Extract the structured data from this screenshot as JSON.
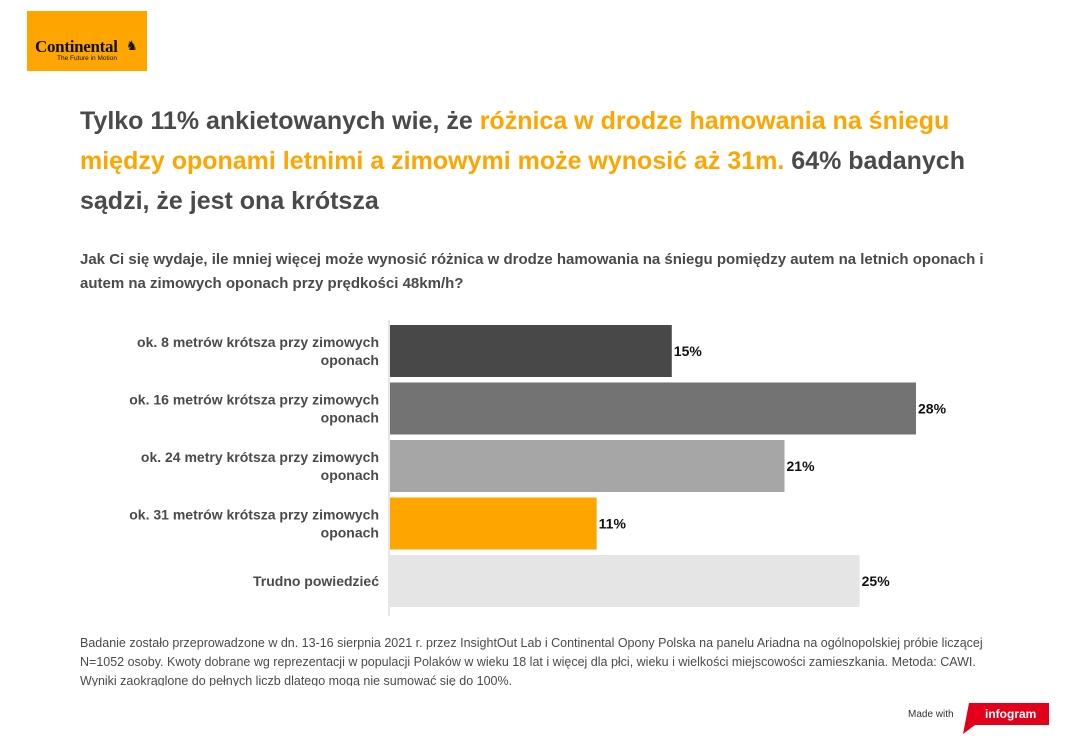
{
  "logo": {
    "word": "Continental",
    "tagline": "The Future in Motion",
    "bg_color": "#ffa500",
    "icon": "horse-icon"
  },
  "headline": {
    "part1": "Tylko 11% ankietowanych wie, że ",
    "highlight": "różnica w drodze hamowania na śniegu między oponami letnimi a zimowymi może wynosić aż 31m.",
    "part2": " 64% badanych sądzi, że jest ona krótsza",
    "highlight_color": "#ffa500"
  },
  "question": "Jak Ci się wydaje, ile mniej więcej może wynosić różnica w drodze hamowania na śniegu pomiędzy autem na letnich oponach i autem na zimowych oponach przy prędkości 48km/h?",
  "chart_data": {
    "type": "bar",
    "orientation": "horizontal",
    "categories": [
      [
        "ok. 8 metrów krótsza przy zimowych",
        "oponach"
      ],
      [
        "ok. 16 metrów krótsza przy zimowych",
        "oponach"
      ],
      [
        "ok. 24 metry krótsza przy zimowych",
        "oponach"
      ],
      [
        "ok. 31 metrów krótsza przy zimowych",
        "oponach"
      ],
      [
        "Trudno powiedzieć"
      ]
    ],
    "values": [
      15,
      28,
      21,
      11,
      25
    ],
    "value_labels": [
      "15%",
      "28%",
      "21%",
      "11%",
      "25%"
    ],
    "colors": [
      "#484848",
      "#737373",
      "#a6a6a6",
      "#ffa500",
      "#e5e5e5"
    ],
    "xlim": [
      0,
      28
    ],
    "grid": false
  },
  "footnote": "Badanie zostało przeprowadzone w dn. 13-16 sierpnia 2021 r. przez InsightOut Lab i Continental Opony Polska na panelu Ariadna na ogólnopolskiej próbie liczącej N=1052 osoby. Kwoty dobrane wg reprezentacji w populacji Polaków w wieku 18 lat i więcej dla płci, wieku i wielkości miejscowości zamieszkania. Metoda: CAWI. Wyniki zaokrąglone do pełnych liczb dlatego mogą nie sumować się do 100%.",
  "badge": {
    "made_with": "Made with",
    "brand": "infogram",
    "color": "#e2001a"
  }
}
